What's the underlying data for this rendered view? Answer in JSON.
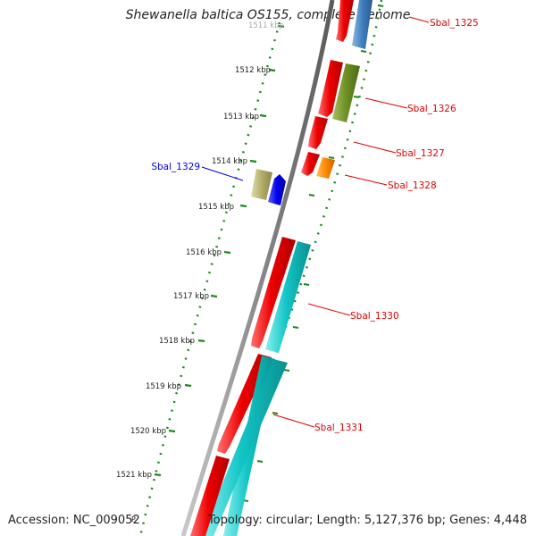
{
  "title": "Shewanella baltica OS155, complete genome",
  "footer": {
    "accession": "Accession: NC_009052",
    "topology": "Topology: circular; Length: 5,127,376 bp; Genes: 4,448",
    "edge_marker": "P"
  },
  "scale": {
    "unit": "kbp",
    "ticks": [
      "1511 kbp",
      "1512 kbp",
      "1513 kbp",
      "1514 kbp",
      "1515 kbp",
      "1516 kbp",
      "1517 kbp",
      "1518 kbp",
      "1519 kbp",
      "1520 kbp",
      "1521 kbp"
    ]
  },
  "genes": [
    {
      "label": "Sbal_1325",
      "label_color": "#e00000"
    },
    {
      "label": "Sbal_1326",
      "label_color": "#e00000"
    },
    {
      "label": "Sbal_1327",
      "label_color": "#e00000"
    },
    {
      "label": "Sbal_1328",
      "label_color": "#e00000"
    },
    {
      "label": "Sbal_1329",
      "label_color": "#0000ee"
    },
    {
      "label": "Sbal_1330",
      "label_color": "#e00000"
    },
    {
      "label": "Sbal_1331",
      "label_color": "#e00000"
    }
  ],
  "colors": {
    "backbone": "#8a8a8a",
    "scale_dots": "#1a8a1a",
    "cds": "#ee0000",
    "cds_cyan": "#13c6c6",
    "cds_olive": "#6d8f24",
    "cds_orange": "#ff8a00",
    "cds_blue": "#0000ee",
    "cds_tan": "#b3ad6a",
    "cds_steel": "#3f7fbf"
  }
}
